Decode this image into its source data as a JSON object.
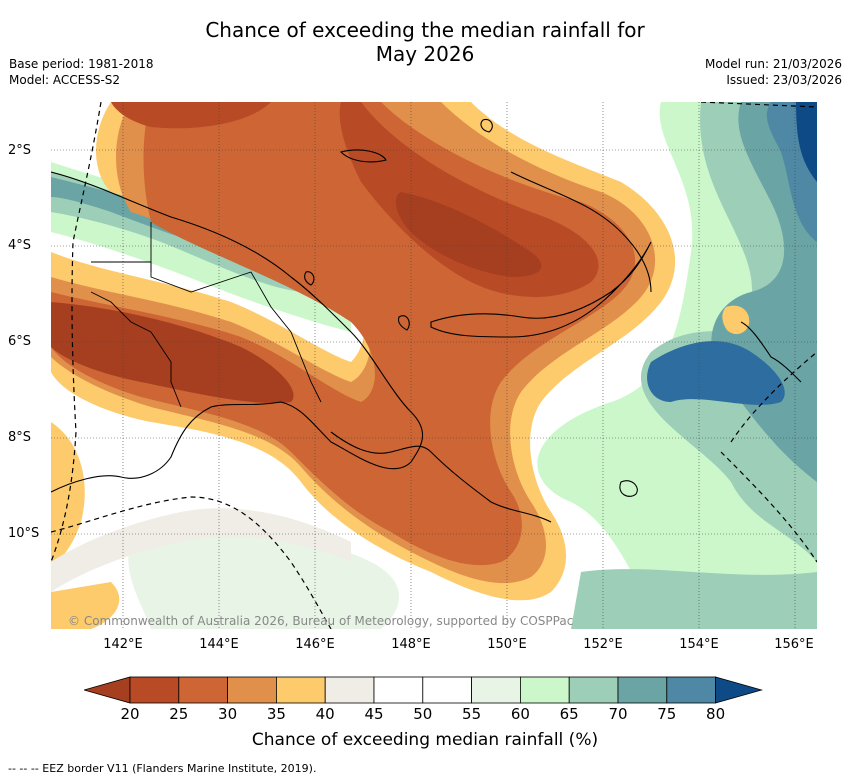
{
  "header": {
    "title_line1": "Chance of exceeding the median rainfall for",
    "title_line2": "May 2026",
    "base_period": "Base period: 1981-2018",
    "model": "Model: ACCESS-S2",
    "model_run": "Model run: 21/03/2026",
    "issued": "Issued: 23/03/2026"
  },
  "map": {
    "lat_labels": [
      "2°S",
      "4°S",
      "6°S",
      "8°S",
      "10°S"
    ],
    "lon_labels": [
      "142°E",
      "144°E",
      "146°E",
      "148°E",
      "150°E",
      "152°E",
      "154°E",
      "156°E"
    ],
    "copyright": "© Commonwealth of Australia 2026, Bureau of Meteorology, supported by COSPPac"
  },
  "colorbar": {
    "title": "Chance of exceeding median rainfall (%)",
    "ticks": [
      "20",
      "25",
      "30",
      "35",
      "40",
      "45",
      "50",
      "55",
      "60",
      "65",
      "70",
      "75",
      "80"
    ],
    "colors": [
      "#a63e20",
      "#b84a25",
      "#cd6534",
      "#e0904a",
      "#fdca6c",
      "#f0ede7",
      "#ffffff",
      "#ffffff",
      "#e8f5e6",
      "#cbf7cb",
      "#9dcfb8",
      "#6aa4a4",
      "#4e88a5",
      "#2e6da0",
      "#0e4a86"
    ]
  },
  "footer": {
    "legend_note": "--  --  -- EEZ border V11 (Flanders Marine Institute, 2019)."
  }
}
